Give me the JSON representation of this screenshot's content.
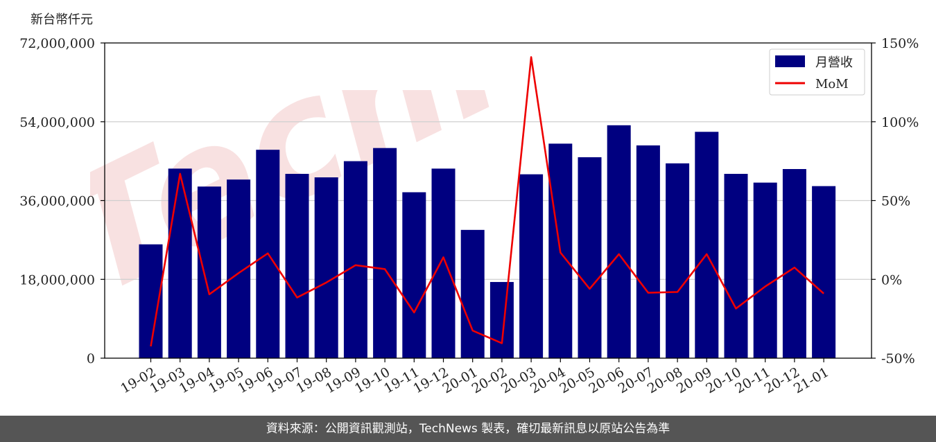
{
  "unit_label": "新台幣仟元",
  "footer_text": "資料來源：公開資訊觀測站，TechNews 製表，確切最新訊息以原站公告為準",
  "watermark_text": "TechNews",
  "colors": {
    "bar": "#000080",
    "line": "#ee0000",
    "watermark": "#f3c9c9",
    "footer": "#555555"
  },
  "chart_data": {
    "type": "bar",
    "categories": [
      "19-02",
      "19-03",
      "19-04",
      "19-05",
      "19-06",
      "19-07",
      "19-08",
      "19-09",
      "19-10",
      "19-11",
      "19-12",
      "20-01",
      "20-02",
      "20-03",
      "20-04",
      "20-05",
      "20-06",
      "20-07",
      "20-08",
      "20-09",
      "20-10",
      "20-11",
      "20-12",
      "21-01"
    ],
    "series": [
      {
        "name": "月營收",
        "type": "bar",
        "axis": "left",
        "values": [
          26000000,
          43300000,
          39200000,
          40800000,
          47600000,
          42100000,
          41300000,
          45000000,
          48000000,
          37900000,
          43300000,
          29300000,
          17400000,
          42000000,
          49000000,
          45900000,
          53200000,
          48600000,
          44500000,
          51700000,
          42100000,
          40100000,
          43200000,
          39300000
        ]
      },
      {
        "name": "MoM",
        "type": "line",
        "axis": "right",
        "unit": "%",
        "values": [
          -42.5,
          67,
          -9.5,
          4,
          16.5,
          -11.5,
          -2,
          9,
          6.5,
          -21,
          14,
          -32.5,
          -40.5,
          141,
          17,
          -6,
          16,
          -8.5,
          -8,
          16,
          -18.5,
          -4.5,
          7.5,
          -9
        ]
      }
    ],
    "y_left": {
      "ylim": [
        0,
        72000000
      ],
      "ticks": [
        "0",
        "18,000,000",
        "36,000,000",
        "54,000,000",
        "72,000,000"
      ],
      "tick_values": [
        0,
        18000000,
        36000000,
        54000000,
        72000000
      ]
    },
    "y_right": {
      "ylim": [
        -50,
        150
      ],
      "ticks": [
        "-50%",
        "0%",
        "50%",
        "100%",
        "150%"
      ],
      "tick_values": [
        -50,
        0,
        50,
        100,
        150
      ]
    },
    "grid": true,
    "legend_position": "top-right"
  }
}
